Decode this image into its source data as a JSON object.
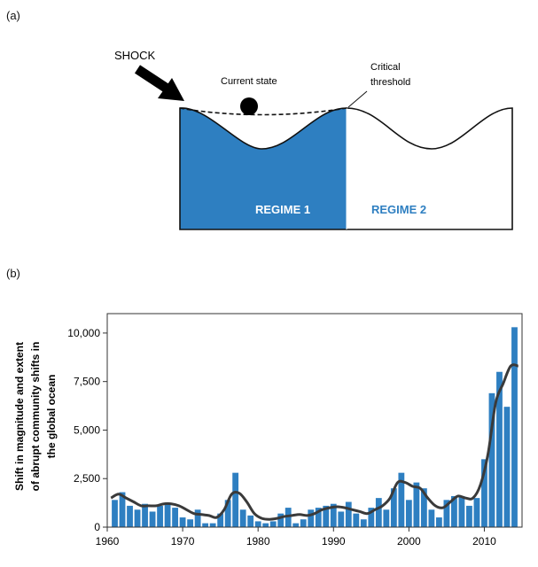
{
  "panel_a": {
    "label": "(a)",
    "shock_label": "SHOCK",
    "current_state_label": "Current state",
    "threshold_label_line1": "Critical",
    "threshold_label_line2": "threshold",
    "regime1_label": "REGIME 1",
    "regime2_label": "REGIME 2",
    "colors": {
      "regime1_fill": "#2e7fc1",
      "regime2_text": "#2e7fc1",
      "ball": "#000000"
    }
  },
  "panel_b": {
    "label": "(b)"
  },
  "chart_data": {
    "type": "bar",
    "ylabel": "Shift in magnitude and extent of abrupt community shifts in the global ocean",
    "xlim": [
      1960,
      2015
    ],
    "ylim": [
      0,
      11000
    ],
    "x_ticks": [
      "1960",
      "1970",
      "1980",
      "1990",
      "2000",
      "2010"
    ],
    "y_ticks": [
      "0",
      "2,500",
      "5,000",
      "7,500",
      "10,000"
    ],
    "grid": false,
    "bar_color": "#2e7fc1",
    "line_color": "#3a3a3a",
    "series": [
      {
        "type": "bar",
        "x": [
          1961,
          1962,
          1963,
          1964,
          1965,
          1966,
          1967,
          1968,
          1969,
          1970,
          1971,
          1972,
          1973,
          1974,
          1975,
          1976,
          1977,
          1978,
          1979,
          1980,
          1981,
          1982,
          1983,
          1984,
          1985,
          1986,
          1987,
          1988,
          1989,
          1990,
          1991,
          1992,
          1993,
          1994,
          1995,
          1996,
          1997,
          1998,
          1999,
          2000,
          2001,
          2002,
          2003,
          2004,
          2005,
          2006,
          2007,
          2008,
          2009,
          2010,
          2011,
          2012,
          2013,
          2014
        ],
        "values": [
          1400,
          1800,
          1100,
          900,
          1200,
          800,
          1100,
          1200,
          1000,
          500,
          400,
          900,
          200,
          200,
          700,
          1400,
          2800,
          900,
          600,
          300,
          200,
          300,
          700,
          1000,
          200,
          400,
          900,
          1000,
          1100,
          1200,
          800,
          1300,
          700,
          400,
          1000,
          1500,
          900,
          2000,
          2800,
          1400,
          2300,
          2000,
          900,
          500,
          1400,
          1600,
          1600,
          1100,
          1500,
          3500,
          6900,
          8000,
          6200,
          10300
        ]
      },
      {
        "type": "line",
        "x": [
          1960.5,
          1961.5,
          1962.5,
          1963.5,
          1964.5,
          1965.5,
          1966.5,
          1967.5,
          1968.5,
          1969.5,
          1970.5,
          1971.5,
          1972.5,
          1973.5,
          1974.5,
          1975.5,
          1976.5,
          1977.5,
          1978.5,
          1979.5,
          1980.5,
          1981.5,
          1982.5,
          1983.5,
          1984.5,
          1985.5,
          1986.5,
          1987.5,
          1988.5,
          1989.5,
          1990.5,
          1991.5,
          1992.5,
          1993.5,
          1994.5,
          1995.5,
          1996.5,
          1997.5,
          1998.5,
          1999.5,
          2000.5,
          2001.5,
          2002.5,
          2003.5,
          2004.5,
          2005.5,
          2006.5,
          2007.5,
          2008.5,
          2009.5,
          2010.5,
          2011.5,
          2012.5,
          2013.5,
          2014.5
        ],
        "values": [
          1500,
          1700,
          1500,
          1300,
          1100,
          1100,
          1100,
          1200,
          1200,
          1100,
          900,
          700,
          650,
          600,
          500,
          900,
          1700,
          1750,
          1300,
          700,
          450,
          400,
          450,
          550,
          600,
          650,
          600,
          700,
          900,
          1000,
          1050,
          1000,
          900,
          800,
          700,
          900,
          1100,
          1500,
          2300,
          2300,
          2100,
          2000,
          1500,
          1100,
          1000,
          1300,
          1600,
          1500,
          1500,
          2200,
          3800,
          6400,
          7400,
          8300,
          8300
        ]
      }
    ]
  }
}
